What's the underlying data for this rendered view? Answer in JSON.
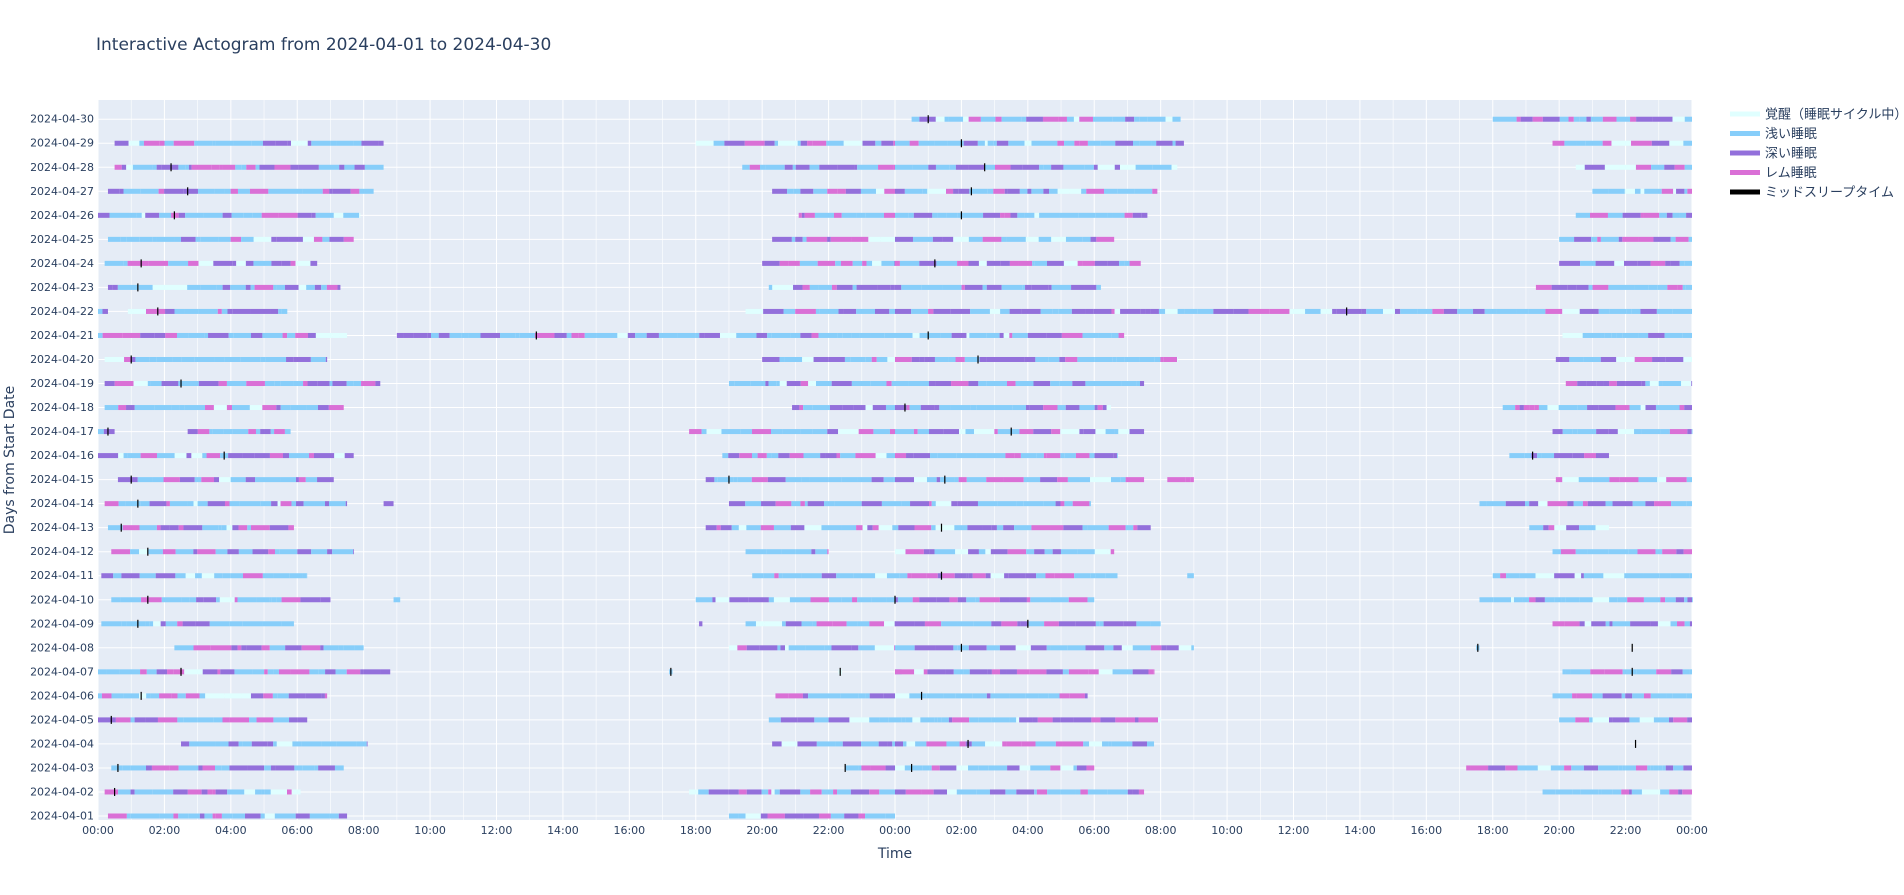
{
  "chart_data": {
    "type": "actogram",
    "title": "Interactive Actogram from 2024-04-01 to 2024-04-30",
    "xlabel": "Time",
    "ylabel": "Days from Start Date",
    "x_range_hours": [
      0,
      48
    ],
    "x_tick_step_hours": 2,
    "x_tick_labels": [
      "00:00",
      "02:00",
      "04:00",
      "06:00",
      "08:00",
      "10:00",
      "12:00",
      "14:00",
      "16:00",
      "18:00",
      "20:00",
      "22:00",
      "00:00",
      "02:00",
      "04:00",
      "06:00",
      "08:00",
      "10:00",
      "12:00",
      "14:00",
      "16:00",
      "18:00",
      "20:00",
      "22:00",
      "00:00"
    ],
    "grid": true,
    "legend_position": "top-right",
    "legend": [
      {
        "key": "wake",
        "label": "覚醒（睡眠サイクル中）",
        "color": "#e0ffff"
      },
      {
        "key": "light",
        "label": "浅い睡眠",
        "color": "#87cefa"
      },
      {
        "key": "deep",
        "label": "深い睡眠",
        "color": "#9370db"
      },
      {
        "key": "rem",
        "label": "レム睡眠",
        "color": "#da70d6"
      },
      {
        "key": "mid",
        "label": "ミッドスリープタイム",
        "color": "#000000"
      }
    ],
    "days": [
      {
        "date": "2024-04-01",
        "sleep": [
          [
            0.3,
            7.5
          ],
          [
            19.0,
            24.0
          ]
        ],
        "mid": []
      },
      {
        "date": "2024-04-02",
        "sleep": [
          [
            0.2,
            6.1
          ],
          [
            17.8,
            24.0
          ],
          [
            24.0,
            31.5
          ],
          [
            43.5,
            48.0
          ]
        ],
        "mid": [
          0.5
        ]
      },
      {
        "date": "2024-04-03",
        "sleep": [
          [
            0.4,
            7.4
          ],
          [
            22.5,
            24.0
          ],
          [
            24.0,
            30.0
          ],
          [
            41.2,
            48.0
          ]
        ],
        "mid": [
          0.6,
          22.5,
          24.5
        ]
      },
      {
        "date": "2024-04-04",
        "sleep": [
          [
            2.5,
            8.1
          ],
          [
            20.3,
            24.0
          ],
          [
            24.0,
            31.8
          ]
        ],
        "mid": [
          26.2,
          46.3
        ]
      },
      {
        "date": "2024-04-05",
        "sleep": [
          [
            0.0,
            6.3
          ],
          [
            20.2,
            24.0
          ],
          [
            24.0,
            32.0
          ],
          [
            44.0,
            48.0
          ]
        ],
        "mid": [
          0.4
        ]
      },
      {
        "date": "2024-04-06",
        "sleep": [
          [
            0.0,
            6.9
          ],
          [
            20.4,
            24.0
          ],
          [
            24.0,
            29.8
          ],
          [
            43.8,
            48.0
          ]
        ],
        "mid": [
          1.3,
          24.8
        ]
      },
      {
        "date": "2024-04-07",
        "sleep": [
          [
            0.0,
            8.8
          ],
          [
            17.2,
            17.3
          ],
          [
            22.3,
            22.4
          ],
          [
            24.0,
            24.2
          ],
          [
            24.0,
            31.8
          ],
          [
            44.1,
            48.0
          ]
        ],
        "mid": [
          2.5,
          17.25,
          22.35,
          46.2
        ]
      },
      {
        "date": "2024-04-08",
        "sleep": [
          [
            2.3,
            8.0
          ],
          [
            19.0,
            24.0
          ],
          [
            24.0,
            33.0
          ],
          [
            41.5,
            41.6
          ]
        ],
        "mid": [
          26.0,
          41.55,
          46.2
        ]
      },
      {
        "date": "2024-04-09",
        "sleep": [
          [
            0.1,
            5.9
          ],
          [
            18.1,
            18.2
          ],
          [
            19.5,
            24.0
          ],
          [
            24.0,
            32.0
          ],
          [
            43.8,
            48.0
          ]
        ],
        "mid": [
          1.2,
          28.0
        ]
      },
      {
        "date": "2024-04-10",
        "sleep": [
          [
            0.4,
            7.0
          ],
          [
            8.9,
            9.1
          ],
          [
            18.0,
            24.0
          ],
          [
            24.0,
            30.0
          ],
          [
            41.6,
            48.0
          ]
        ],
        "mid": [
          1.5,
          24.0
        ]
      },
      {
        "date": "2024-04-11",
        "sleep": [
          [
            0.1,
            6.3
          ],
          [
            19.7,
            24.0
          ],
          [
            24.0,
            30.7
          ],
          [
            32.8,
            33.0
          ],
          [
            42.0,
            48.0
          ]
        ],
        "mid": [
          25.4
        ]
      },
      {
        "date": "2024-04-12",
        "sleep": [
          [
            0.4,
            7.7
          ],
          [
            19.5,
            22.0
          ],
          [
            24.0,
            30.6
          ],
          [
            43.8,
            48.0
          ]
        ],
        "mid": [
          1.5
        ]
      },
      {
        "date": "2024-04-13",
        "sleep": [
          [
            0.3,
            5.9
          ],
          [
            18.3,
            24.0
          ],
          [
            24.0,
            31.7
          ],
          [
            43.1,
            45.5
          ]
        ],
        "mid": [
          0.7,
          25.4
        ]
      },
      {
        "date": "2024-04-14",
        "sleep": [
          [
            0.2,
            7.5
          ],
          [
            8.6,
            8.9
          ],
          [
            19.0,
            24.0
          ],
          [
            24.0,
            29.9
          ],
          [
            41.6,
            48.0
          ]
        ],
        "mid": [
          1.2
        ]
      },
      {
        "date": "2024-04-15",
        "sleep": [
          [
            0.6,
            7.1
          ],
          [
            18.3,
            24.0
          ],
          [
            24.0,
            31.5
          ],
          [
            32.2,
            33.0
          ],
          [
            43.9,
            48.0
          ]
        ],
        "mid": [
          1.0,
          19.0,
          25.5
        ]
      },
      {
        "date": "2024-04-16",
        "sleep": [
          [
            0.0,
            7.7
          ],
          [
            18.8,
            24.0
          ],
          [
            24.0,
            30.7
          ],
          [
            42.5,
            45.5
          ]
        ],
        "mid": [
          3.8,
          43.2
        ]
      },
      {
        "date": "2024-04-17",
        "sleep": [
          [
            0.0,
            0.5
          ],
          [
            2.7,
            5.8
          ],
          [
            17.8,
            24.0
          ],
          [
            24.0,
            31.5
          ],
          [
            43.8,
            48.0
          ]
        ],
        "mid": [
          0.3,
          27.5
        ]
      },
      {
        "date": "2024-04-18",
        "sleep": [
          [
            0.2,
            7.4
          ],
          [
            20.9,
            24.0
          ],
          [
            24.0,
            30.5
          ],
          [
            42.3,
            48.0
          ]
        ],
        "mid": [
          24.3
        ]
      },
      {
        "date": "2024-04-19",
        "sleep": [
          [
            0.2,
            8.5
          ],
          [
            19.0,
            24.0
          ],
          [
            24.0,
            31.5
          ],
          [
            44.2,
            48.0
          ]
        ],
        "mid": [
          2.5
        ]
      },
      {
        "date": "2024-04-20",
        "sleep": [
          [
            0.2,
            6.9
          ],
          [
            20.0,
            24.0
          ],
          [
            24.0,
            32.5
          ],
          [
            43.9,
            48.0
          ]
        ],
        "mid": [
          1.0,
          26.5
        ]
      },
      {
        "date": "2024-04-21",
        "sleep": [
          [
            0.0,
            7.5
          ],
          [
            9.0,
            24.0
          ],
          [
            24.0,
            30.9
          ],
          [
            44.1,
            48.0
          ]
        ],
        "mid": [
          13.2,
          25.0
        ]
      },
      {
        "date": "2024-04-22",
        "sleep": [
          [
            0.0,
            0.3
          ],
          [
            0.9,
            5.7
          ],
          [
            19.5,
            24.0
          ],
          [
            24.0,
            48.0
          ]
        ],
        "mid": [
          1.8,
          37.6
        ]
      },
      {
        "date": "2024-04-23",
        "sleep": [
          [
            0.3,
            7.3
          ],
          [
            20.2,
            24.0
          ],
          [
            24.0,
            30.2
          ],
          [
            43.3,
            48.0
          ]
        ],
        "mid": [
          1.2
        ]
      },
      {
        "date": "2024-04-24",
        "sleep": [
          [
            0.2,
            6.6
          ],
          [
            20.0,
            24.0
          ],
          [
            24.0,
            31.4
          ],
          [
            44.0,
            48.0
          ]
        ],
        "mid": [
          1.3,
          25.2
        ]
      },
      {
        "date": "2024-04-25",
        "sleep": [
          [
            0.3,
            7.7
          ],
          [
            20.3,
            24.0
          ],
          [
            24.0,
            30.6
          ],
          [
            44.0,
            48.0
          ]
        ],
        "mid": []
      },
      {
        "date": "2024-04-26",
        "sleep": [
          [
            0.0,
            7.9
          ],
          [
            21.1,
            24.0
          ],
          [
            24.0,
            31.6
          ],
          [
            44.5,
            48.0
          ]
        ],
        "mid": [
          2.3,
          26.0
        ]
      },
      {
        "date": "2024-04-27",
        "sleep": [
          [
            0.3,
            8.3
          ],
          [
            20.3,
            24.0
          ],
          [
            24.0,
            31.9
          ],
          [
            45.0,
            48.0
          ]
        ],
        "mid": [
          2.7,
          26.3
        ]
      },
      {
        "date": "2024-04-28",
        "sleep": [
          [
            0.5,
            8.6
          ],
          [
            19.4,
            24.0
          ],
          [
            24.0,
            32.5
          ],
          [
            44.5,
            48.0
          ]
        ],
        "mid": [
          2.2,
          26.7
        ]
      },
      {
        "date": "2024-04-29",
        "sleep": [
          [
            0.5,
            8.6
          ],
          [
            18.0,
            24.0
          ],
          [
            24.0,
            32.7
          ],
          [
            43.8,
            48.0
          ]
        ],
        "mid": [
          26.0
        ]
      },
      {
        "date": "2024-04-30",
        "sleep": [
          [
            24.5,
            32.6
          ],
          [
            42.0,
            48.0
          ]
        ],
        "mid": [
          25.0
        ]
      }
    ]
  }
}
